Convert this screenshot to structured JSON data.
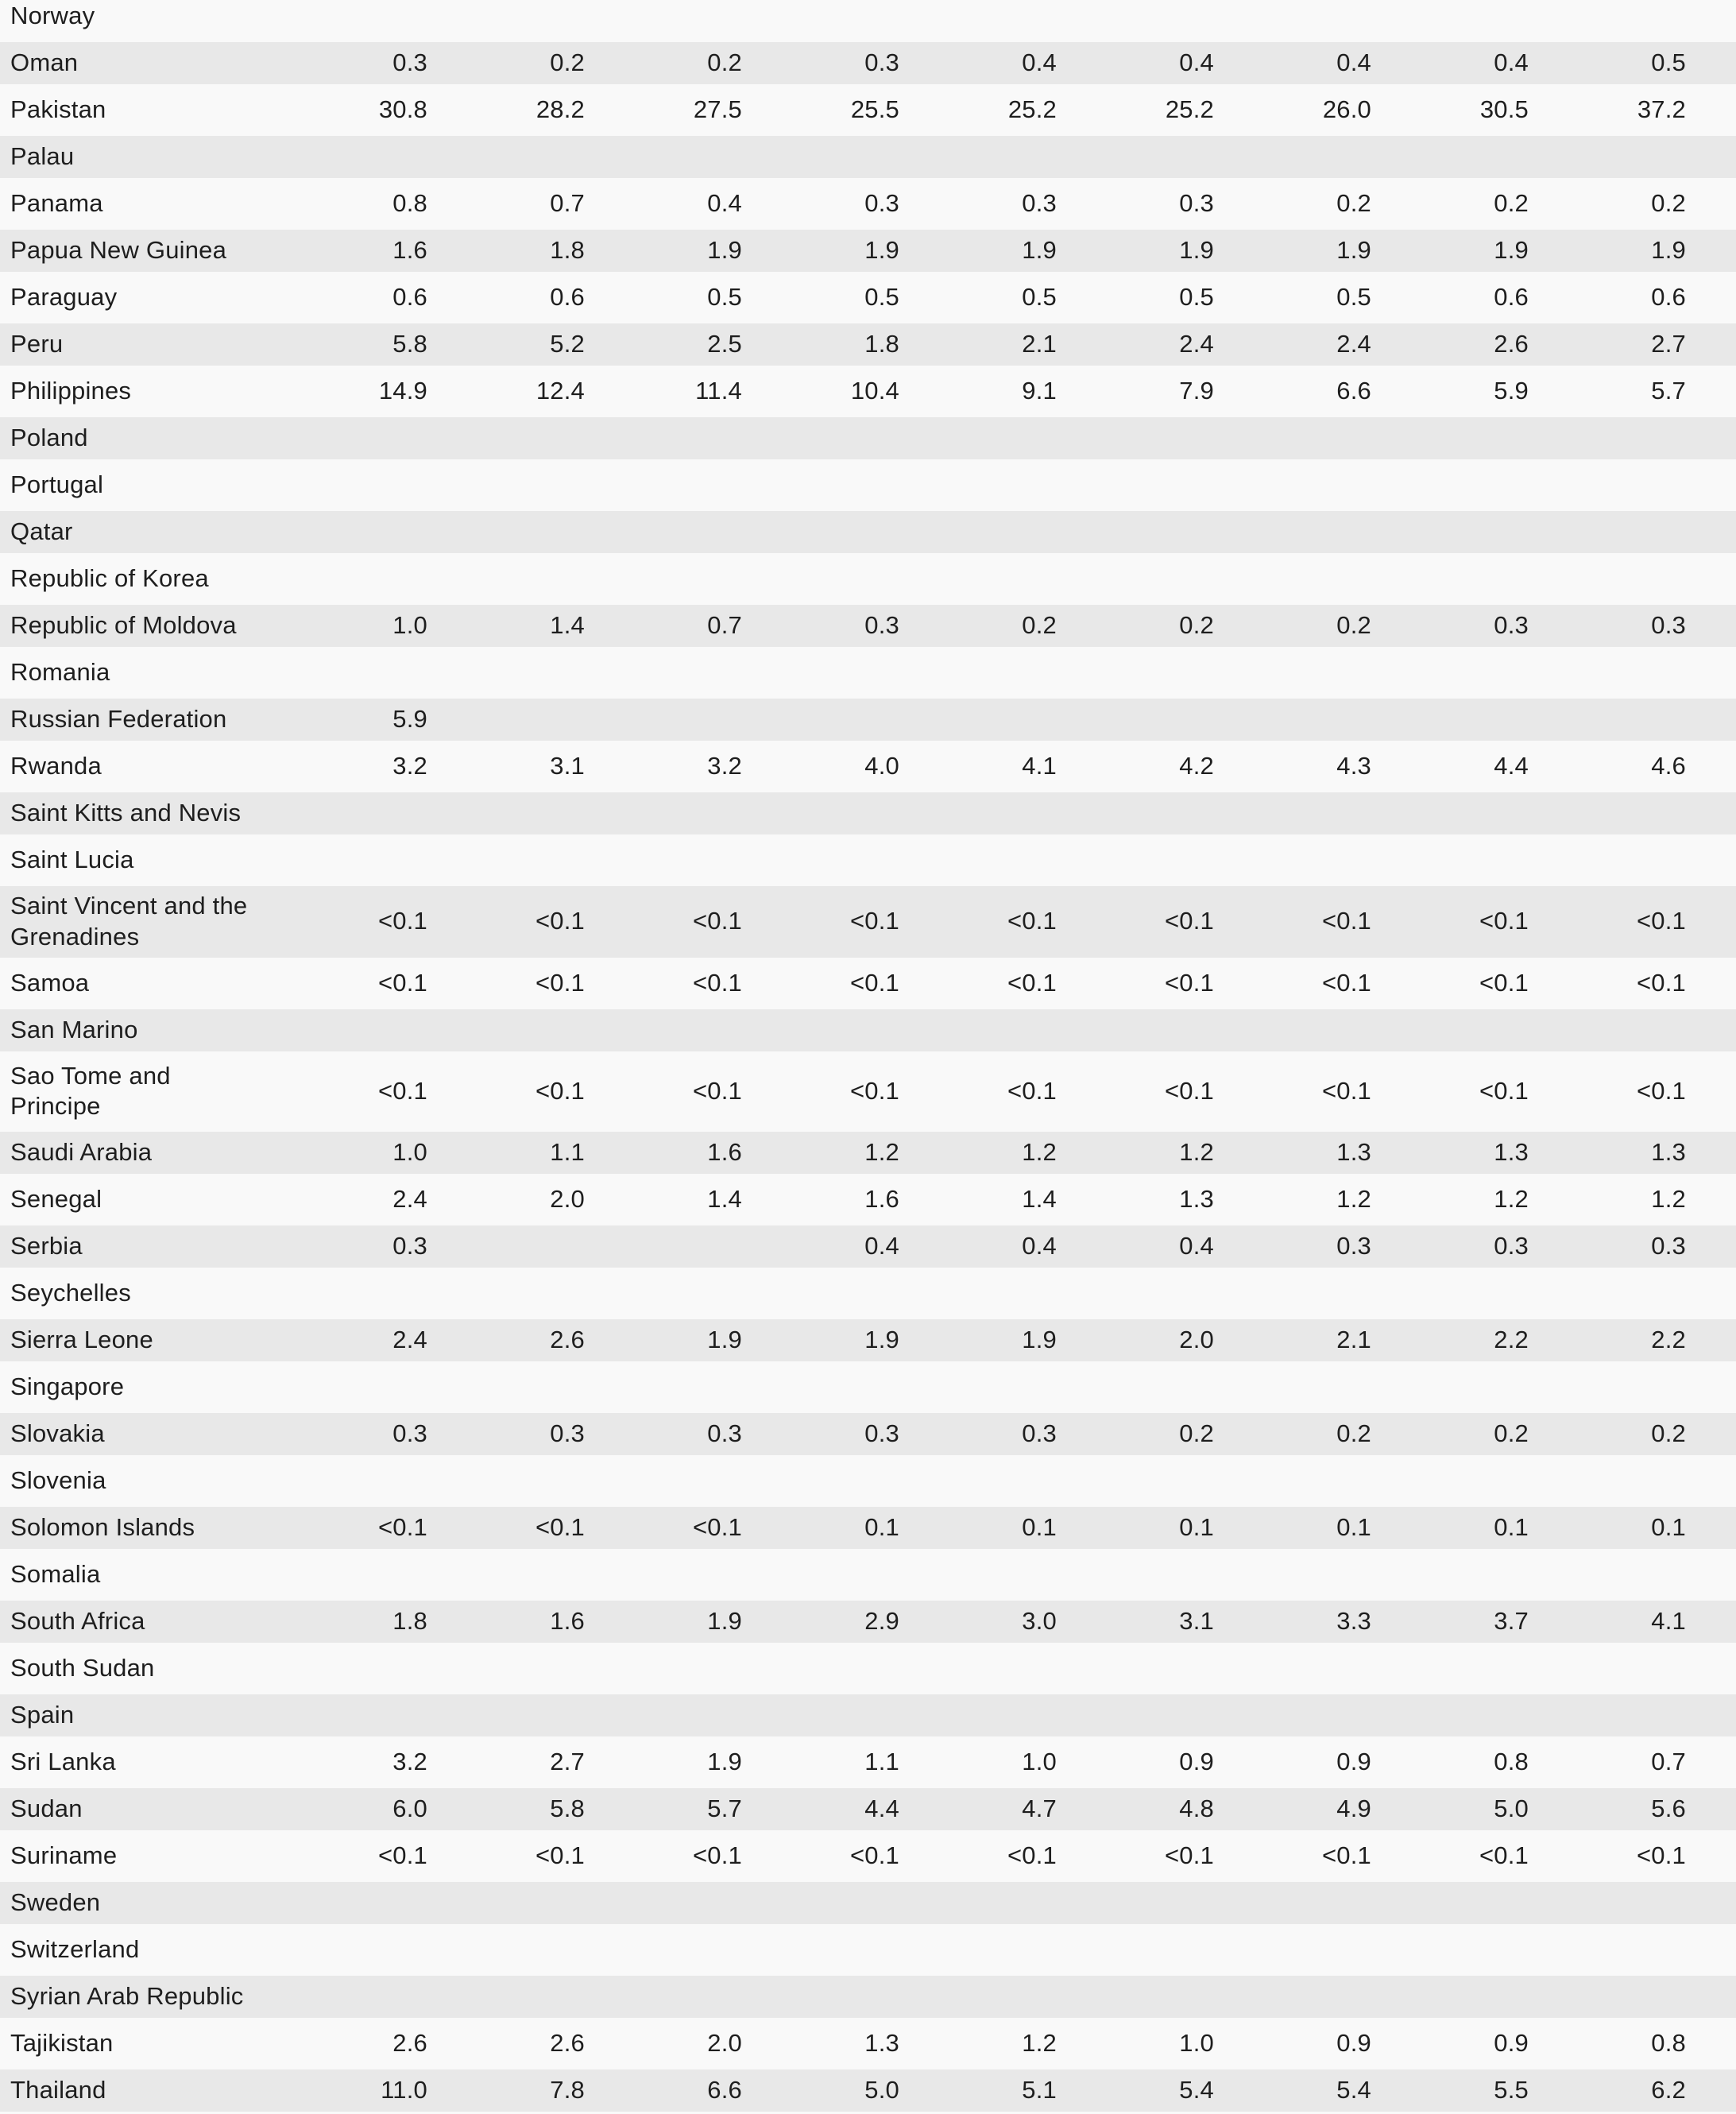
{
  "document": {
    "kind": "country-data-table",
    "description": "Alphabetical country table (Norway–Thailand) with nine numeric value columns; no visible header row in the crop"
  },
  "colors": {
    "background": "#f9f9f9",
    "row_shade": "#e8e8e8",
    "text": "#1e1e1e"
  },
  "table": {
    "num_value_columns": 9,
    "rows": [
      {
        "country": "Norway",
        "values": []
      },
      {
        "country": "Oman",
        "values": [
          "0.3",
          "0.2",
          "0.2",
          "0.3",
          "0.4",
          "0.4",
          "0.4",
          "0.4",
          "0.5"
        ]
      },
      {
        "country": "Pakistan",
        "values": [
          "30.8",
          "28.2",
          "27.5",
          "25.5",
          "25.2",
          "25.2",
          "26.0",
          "30.5",
          "37.2"
        ]
      },
      {
        "country": "Palau",
        "values": []
      },
      {
        "country": "Panama",
        "values": [
          "0.8",
          "0.7",
          "0.4",
          "0.3",
          "0.3",
          "0.3",
          "0.2",
          "0.2",
          "0.2"
        ]
      },
      {
        "country": "Papua New Guinea",
        "values": [
          "1.6",
          "1.8",
          "1.9",
          "1.9",
          "1.9",
          "1.9",
          "1.9",
          "1.9",
          "1.9"
        ]
      },
      {
        "country": "Paraguay",
        "values": [
          "0.6",
          "0.6",
          "0.5",
          "0.5",
          "0.5",
          "0.5",
          "0.5",
          "0.6",
          "0.6"
        ]
      },
      {
        "country": "Peru",
        "values": [
          "5.8",
          "5.2",
          "2.5",
          "1.8",
          "2.1",
          "2.4",
          "2.4",
          "2.6",
          "2.7"
        ]
      },
      {
        "country": "Philippines",
        "values": [
          "14.9",
          "12.4",
          "11.4",
          "10.4",
          "9.1",
          "7.9",
          "6.6",
          "5.9",
          "5.7"
        ]
      },
      {
        "country": "Poland",
        "values": []
      },
      {
        "country": "Portugal",
        "values": []
      },
      {
        "country": "Qatar",
        "values": []
      },
      {
        "country": "Republic of Korea",
        "values": []
      },
      {
        "country": "Republic of Moldova",
        "values": [
          "1.0",
          "1.4",
          "0.7",
          "0.3",
          "0.2",
          "0.2",
          "0.2",
          "0.3",
          "0.3"
        ]
      },
      {
        "country": "Romania",
        "values": []
      },
      {
        "country": "Russian Federation",
        "values": [
          "5.9",
          "",
          "",
          "",
          "",
          "",
          "",
          "",
          ""
        ]
      },
      {
        "country": "Rwanda",
        "values": [
          "3.2",
          "3.1",
          "3.2",
          "4.0",
          "4.1",
          "4.2",
          "4.3",
          "4.4",
          "4.6"
        ]
      },
      {
        "country": "Saint Kitts and Nevis",
        "values": []
      },
      {
        "country": "Saint Lucia",
        "values": []
      },
      {
        "country": "Saint Vincent and the Grenadines",
        "values": [
          "<0.1",
          "<0.1",
          "<0.1",
          "<0.1",
          "<0.1",
          "<0.1",
          "<0.1",
          "<0.1",
          "<0.1"
        ]
      },
      {
        "country": "Samoa",
        "values": [
          "<0.1",
          "<0.1",
          "<0.1",
          "<0.1",
          "<0.1",
          "<0.1",
          "<0.1",
          "<0.1",
          "<0.1"
        ]
      },
      {
        "country": "San Marino",
        "values": []
      },
      {
        "country": "Sao Tome and Principe",
        "values": [
          "<0.1",
          "<0.1",
          "<0.1",
          "<0.1",
          "<0.1",
          "<0.1",
          "<0.1",
          "<0.1",
          "<0.1"
        ]
      },
      {
        "country": "Saudi Arabia",
        "values": [
          "1.0",
          "1.1",
          "1.6",
          "1.2",
          "1.2",
          "1.2",
          "1.3",
          "1.3",
          "1.3"
        ]
      },
      {
        "country": "Senegal",
        "values": [
          "2.4",
          "2.0",
          "1.4",
          "1.6",
          "1.4",
          "1.3",
          "1.2",
          "1.2",
          "1.2"
        ]
      },
      {
        "country": "Serbia",
        "values": [
          "0.3",
          "",
          "",
          "0.4",
          "0.4",
          "0.4",
          "0.3",
          "0.3",
          "0.3"
        ]
      },
      {
        "country": "Seychelles",
        "values": []
      },
      {
        "country": "Sierra Leone",
        "values": [
          "2.4",
          "2.6",
          "1.9",
          "1.9",
          "1.9",
          "2.0",
          "2.1",
          "2.2",
          "2.2"
        ]
      },
      {
        "country": "Singapore",
        "values": []
      },
      {
        "country": "Slovakia",
        "values": [
          "0.3",
          "0.3",
          "0.3",
          "0.3",
          "0.3",
          "0.2",
          "0.2",
          "0.2",
          "0.2"
        ]
      },
      {
        "country": "Slovenia",
        "values": []
      },
      {
        "country": "Solomon Islands",
        "values": [
          "<0.1",
          "<0.1",
          "<0.1",
          "0.1",
          "0.1",
          "0.1",
          "0.1",
          "0.1",
          "0.1"
        ]
      },
      {
        "country": "Somalia",
        "values": []
      },
      {
        "country": "South Africa",
        "values": [
          "1.8",
          "1.6",
          "1.9",
          "2.9",
          "3.0",
          "3.1",
          "3.3",
          "3.7",
          "4.1"
        ]
      },
      {
        "country": "South Sudan",
        "values": []
      },
      {
        "country": "Spain",
        "values": []
      },
      {
        "country": "Sri Lanka",
        "values": [
          "3.2",
          "2.7",
          "1.9",
          "1.1",
          "1.0",
          "0.9",
          "0.9",
          "0.8",
          "0.7"
        ]
      },
      {
        "country": "Sudan",
        "values": [
          "6.0",
          "5.8",
          "5.7",
          "4.4",
          "4.7",
          "4.8",
          "4.9",
          "5.0",
          "5.6"
        ]
      },
      {
        "country": "Suriname",
        "values": [
          "<0.1",
          "<0.1",
          "<0.1",
          "<0.1",
          "<0.1",
          "<0.1",
          "<0.1",
          "<0.1",
          "<0.1"
        ]
      },
      {
        "country": "Sweden",
        "values": []
      },
      {
        "country": "Switzerland",
        "values": []
      },
      {
        "country": "Syrian Arab Republic",
        "values": []
      },
      {
        "country": "Tajikistan",
        "values": [
          "2.6",
          "2.6",
          "2.0",
          "1.3",
          "1.2",
          "1.0",
          "0.9",
          "0.9",
          "0.8"
        ]
      },
      {
        "country": "Thailand",
        "values": [
          "11.0",
          "7.8",
          "6.6",
          "5.0",
          "5.1",
          "5.4",
          "5.4",
          "5.5",
          "6.2"
        ]
      }
    ]
  }
}
